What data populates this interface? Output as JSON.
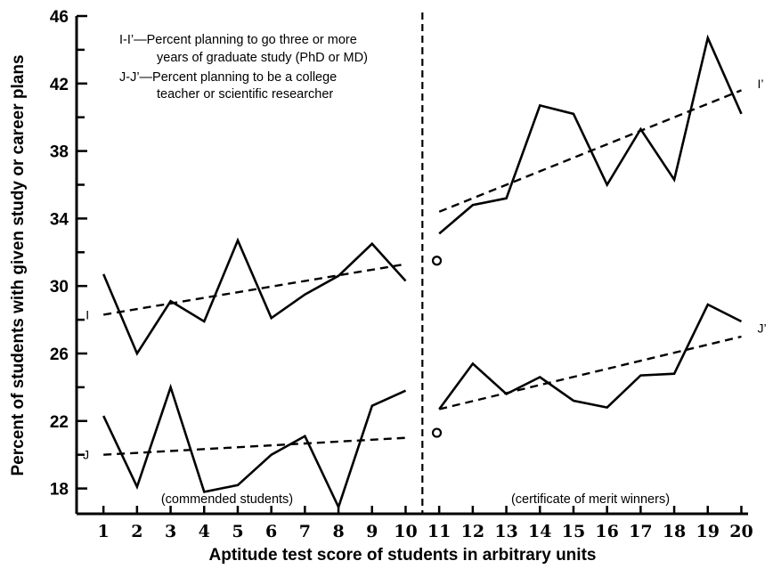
{
  "chart_data": {
    "type": "line",
    "xlabel": "Aptitude test score of students in arbitrary units",
    "ylabel": "Percent of students with given study or career plans",
    "x": [
      1,
      2,
      3,
      4,
      5,
      6,
      7,
      8,
      9,
      10,
      11,
      12,
      13,
      14,
      15,
      16,
      17,
      18,
      19,
      20
    ],
    "xlim": [
      0.2,
      20.2
    ],
    "ylim": [
      16.5,
      46
    ],
    "yticks": [
      18,
      22,
      26,
      30,
      34,
      38,
      42,
      46
    ],
    "legend_notes": [
      "I-I’—Percent planning to go three or more",
      "years of graduate study (PhD or MD)",
      "J-J’—Percent planning to be a college",
      "teacher or scientific researcher"
    ],
    "group_labels": [
      "(commended students)",
      "(certificate of merit winners)"
    ],
    "divider_x": 10.5,
    "series": [
      {
        "name": "I",
        "segments": [
          {
            "x": [
              1,
              2,
              3,
              4,
              5,
              6,
              7,
              8,
              9,
              10
            ],
            "y": [
              30.7,
              26.0,
              29.1,
              27.9,
              32.7,
              28.1,
              29.5,
              30.6,
              32.5,
              30.3
            ]
          },
          {
            "x": [
              11,
              12,
              13,
              14,
              15,
              16,
              17,
              18,
              19,
              20
            ],
            "y": [
              33.1,
              34.8,
              35.2,
              40.7,
              40.2,
              36.0,
              39.3,
              36.3,
              44.7,
              40.2
            ]
          }
        ]
      },
      {
        "name": "J",
        "segments": [
          {
            "x": [
              1,
              2,
              3,
              4,
              5,
              6,
              7,
              8,
              9,
              10
            ],
            "y": [
              22.3,
              18.1,
              24.0,
              17.8,
              18.2,
              20.0,
              21.1,
              16.9,
              22.9,
              23.8
            ]
          },
          {
            "x": [
              11,
              12,
              13,
              14,
              15,
              16,
              17,
              18,
              19,
              20
            ],
            "y": [
              22.7,
              25.4,
              23.6,
              24.6,
              23.2,
              22.8,
              24.7,
              24.8,
              28.9,
              27.9
            ]
          }
        ]
      }
    ],
    "trend_lines": [
      {
        "series": "I",
        "x": [
          1,
          10
        ],
        "y": [
          28.3,
          31.3
        ]
      },
      {
        "series": "I",
        "x": [
          11,
          20
        ],
        "y": [
          34.4,
          41.6
        ]
      },
      {
        "series": "J",
        "x": [
          1,
          10
        ],
        "y": [
          20.0,
          21.0
        ]
      },
      {
        "series": "J",
        "x": [
          11,
          20
        ],
        "y": [
          22.7,
          27.0
        ]
      }
    ],
    "open_markers": [
      {
        "series": "I",
        "x": 10.93,
        "y": 31.5
      },
      {
        "series": "J",
        "x": 10.93,
        "y": 21.3
      }
    ],
    "end_labels": [
      {
        "text": "I",
        "x": 1,
        "y": 28.3,
        "side": "left"
      },
      {
        "text": "I’",
        "x": 20,
        "y": 42.0,
        "side": "right"
      },
      {
        "text": "J",
        "x": 1,
        "y": 20.0,
        "side": "left"
      },
      {
        "text": "J’",
        "x": 20,
        "y": 27.5,
        "side": "right"
      }
    ],
    "grid": false,
    "legend": "top-left"
  }
}
